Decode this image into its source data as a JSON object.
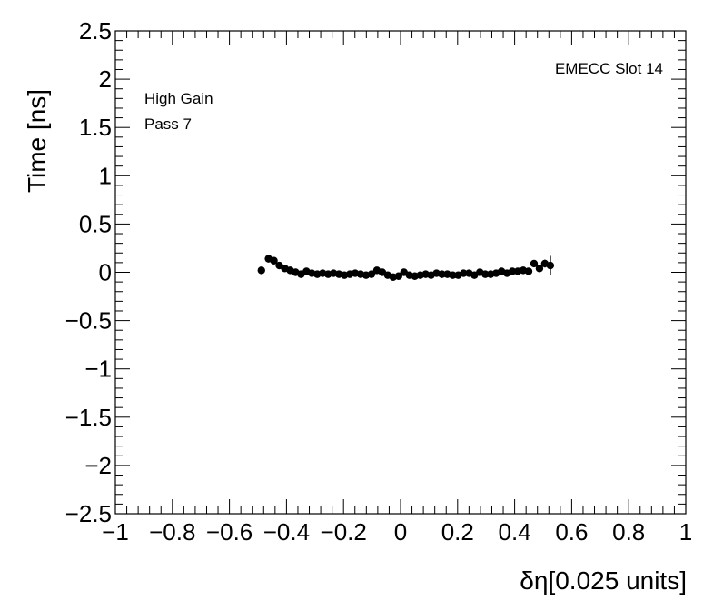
{
  "chart_data": {
    "type": "scatter",
    "xlabel": "δη[0.025 units]",
    "ylabel": "Time [ns]",
    "xlim": [
      -1,
      1
    ],
    "ylim": [
      -2.5,
      2.5
    ],
    "x_ticks": [
      -1,
      -0.8,
      -0.6,
      -0.4,
      -0.2,
      0,
      0.2,
      0.4,
      0.6,
      0.8,
      1
    ],
    "x_tick_labels": [
      "−1",
      "−0.8",
      "−0.6",
      "−0.4",
      "−0.2",
      "0",
      "0.2",
      "0.4",
      "0.6",
      "0.8",
      "1"
    ],
    "y_ticks": [
      -2.5,
      -2,
      -1.5,
      -1,
      -0.5,
      0,
      0.5,
      1,
      1.5,
      2,
      2.5
    ],
    "y_tick_labels": [
      "−2.5",
      "−2",
      "−1.5",
      "−1",
      "−0.5",
      "0",
      "0.5",
      "1",
      "1.5",
      "2",
      "2.5"
    ],
    "grid": false,
    "annotations": {
      "gain": "High Gain",
      "pass": "Pass 7",
      "slot": "EMECC Slot 14"
    },
    "series": [
      {
        "marker_color": "#000000",
        "points": [
          {
            "x": -0.488,
            "y": 0.02,
            "err": 0.02
          },
          {
            "x": -0.463,
            "y": 0.14,
            "err": 0.02
          },
          {
            "x": -0.444,
            "y": 0.12,
            "err": 0.02
          },
          {
            "x": -0.425,
            "y": 0.07,
            "err": 0.02
          },
          {
            "x": -0.406,
            "y": 0.04,
            "err": 0.02
          },
          {
            "x": -0.387,
            "y": 0.02,
            "err": 0.02
          },
          {
            "x": -0.368,
            "y": 0.0,
            "err": 0.02
          },
          {
            "x": -0.349,
            "y": -0.02,
            "err": 0.02
          },
          {
            "x": -0.33,
            "y": 0.01,
            "err": 0.02
          },
          {
            "x": -0.311,
            "y": -0.01,
            "err": 0.02
          },
          {
            "x": -0.292,
            "y": -0.02,
            "err": 0.02
          },
          {
            "x": -0.273,
            "y": -0.01,
            "err": 0.02
          },
          {
            "x": -0.254,
            "y": -0.02,
            "err": 0.02
          },
          {
            "x": -0.235,
            "y": -0.01,
            "err": 0.02
          },
          {
            "x": -0.216,
            "y": -0.02,
            "err": 0.02
          },
          {
            "x": -0.197,
            "y": -0.03,
            "err": 0.02
          },
          {
            "x": -0.178,
            "y": -0.02,
            "err": 0.02
          },
          {
            "x": -0.159,
            "y": -0.01,
            "err": 0.02
          },
          {
            "x": -0.14,
            "y": -0.02,
            "err": 0.02
          },
          {
            "x": -0.121,
            "y": -0.03,
            "err": 0.02
          },
          {
            "x": -0.102,
            "y": -0.02,
            "err": 0.02
          },
          {
            "x": -0.083,
            "y": 0.02,
            "err": 0.02
          },
          {
            "x": -0.064,
            "y": 0.0,
            "err": 0.02
          },
          {
            "x": -0.045,
            "y": -0.03,
            "err": 0.02
          },
          {
            "x": -0.026,
            "y": -0.05,
            "err": 0.02
          },
          {
            "x": -0.007,
            "y": -0.04,
            "err": 0.02
          },
          {
            "x": 0.012,
            "y": 0.0,
            "err": 0.02
          },
          {
            "x": 0.031,
            "y": -0.03,
            "err": 0.02
          },
          {
            "x": 0.05,
            "y": -0.04,
            "err": 0.02
          },
          {
            "x": 0.069,
            "y": -0.03,
            "err": 0.02
          },
          {
            "x": 0.088,
            "y": -0.02,
            "err": 0.02
          },
          {
            "x": 0.107,
            "y": -0.03,
            "err": 0.02
          },
          {
            "x": 0.126,
            "y": -0.01,
            "err": 0.02
          },
          {
            "x": 0.145,
            "y": -0.02,
            "err": 0.02
          },
          {
            "x": 0.164,
            "y": -0.02,
            "err": 0.02
          },
          {
            "x": 0.183,
            "y": -0.03,
            "err": 0.02
          },
          {
            "x": 0.202,
            "y": -0.03,
            "err": 0.02
          },
          {
            "x": 0.221,
            "y": -0.01,
            "err": 0.02
          },
          {
            "x": 0.24,
            "y": -0.01,
            "err": 0.02
          },
          {
            "x": 0.259,
            "y": -0.03,
            "err": 0.02
          },
          {
            "x": 0.278,
            "y": 0.0,
            "err": 0.02
          },
          {
            "x": 0.297,
            "y": -0.02,
            "err": 0.02
          },
          {
            "x": 0.316,
            "y": -0.02,
            "err": 0.02
          },
          {
            "x": 0.335,
            "y": -0.01,
            "err": 0.02
          },
          {
            "x": 0.354,
            "y": 0.01,
            "err": 0.02
          },
          {
            "x": 0.373,
            "y": -0.01,
            "err": 0.02
          },
          {
            "x": 0.392,
            "y": 0.01,
            "err": 0.02
          },
          {
            "x": 0.411,
            "y": 0.01,
            "err": 0.02
          },
          {
            "x": 0.43,
            "y": 0.02,
            "err": 0.02
          },
          {
            "x": 0.449,
            "y": 0.01,
            "err": 0.02
          },
          {
            "x": 0.468,
            "y": 0.09,
            "err": 0.03
          },
          {
            "x": 0.487,
            "y": 0.04,
            "err": 0.03
          },
          {
            "x": 0.506,
            "y": 0.09,
            "err": 0.04
          },
          {
            "x": 0.525,
            "y": 0.07,
            "err": 0.1
          }
        ]
      }
    ]
  }
}
